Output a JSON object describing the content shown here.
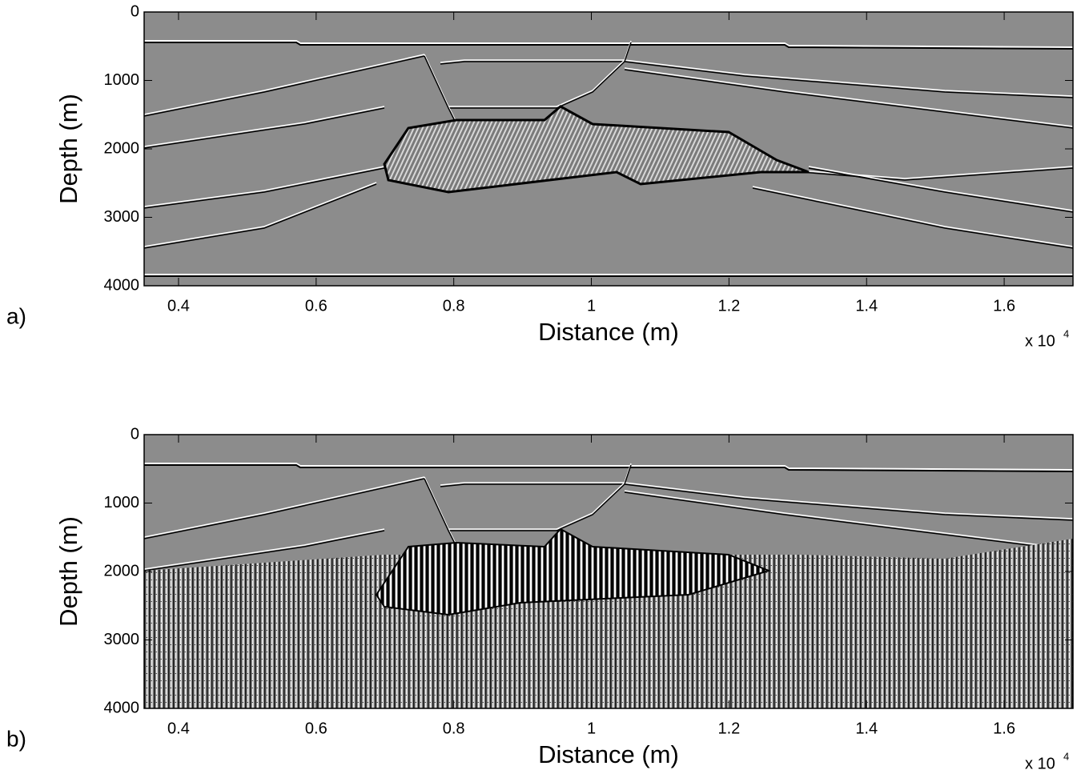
{
  "chart_data": [
    {
      "type": "image",
      "panel_label": "a)",
      "xlabel": "Distance (m)",
      "ylabel": "Depth (m)",
      "x_scale_label": "x 10",
      "x_scale_exponent": "4",
      "xlim": [
        3500,
        17000
      ],
      "xticks": [
        {
          "value": 4000,
          "label": "0.4"
        },
        {
          "value": 6000,
          "label": "0.6"
        },
        {
          "value": 8000,
          "label": "0.8"
        },
        {
          "value": 10000,
          "label": "1"
        },
        {
          "value": 12000,
          "label": "1.2"
        },
        {
          "value": 14000,
          "label": "1.4"
        },
        {
          "value": 16000,
          "label": "1.6"
        }
      ],
      "ylim": [
        0,
        4000
      ],
      "y_reversed": true,
      "yticks": [
        0,
        1000,
        2000,
        3000,
        4000
      ],
      "colormap": "gray"
    },
    {
      "type": "image",
      "panel_label": "b)",
      "xlabel": "Distance (m)",
      "ylabel": "Depth (m)",
      "x_scale_label": "x 10",
      "x_scale_exponent": "4",
      "xlim": [
        3500,
        17000
      ],
      "xticks": [
        {
          "value": 4000,
          "label": "0.4"
        },
        {
          "value": 6000,
          "label": "0.6"
        },
        {
          "value": 8000,
          "label": "0.8"
        },
        {
          "value": 10000,
          "label": "1"
        },
        {
          "value": 12000,
          "label": "1.2"
        },
        {
          "value": 14000,
          "label": "1.4"
        },
        {
          "value": 16000,
          "label": "1.6"
        }
      ],
      "ylim": [
        0,
        4000
      ],
      "y_reversed": true,
      "yticks": [
        0,
        1000,
        2000,
        3000,
        4000
      ],
      "colormap": "gray"
    }
  ]
}
